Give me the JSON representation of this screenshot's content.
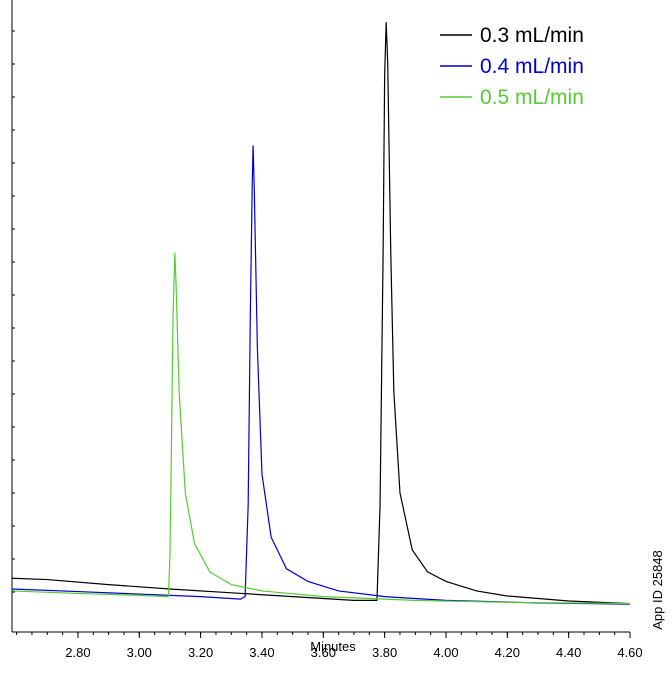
{
  "chart_data": {
    "type": "line",
    "xlabel": "Minutes",
    "annotation": "App ID 25848",
    "xlim": [
      2.585,
      4.6
    ],
    "ylim": [
      0,
      100
    ],
    "xticks": [
      {
        "value": 2.8,
        "label": "2.80"
      },
      {
        "value": 3.0,
        "label": "3.00"
      },
      {
        "value": 3.2,
        "label": "3.20"
      },
      {
        "value": 3.4,
        "label": "3.40"
      },
      {
        "value": 3.6,
        "label": "3.60"
      },
      {
        "value": 3.8,
        "label": "3.80"
      },
      {
        "value": 4.0,
        "label": "4.00"
      },
      {
        "value": 4.2,
        "label": "4.20"
      },
      {
        "value": 4.4,
        "label": "4.40"
      },
      {
        "value": 4.6,
        "label": "4.60"
      }
    ],
    "legend": "top-right",
    "series": [
      {
        "name": "0.3 mL/min",
        "color": "#000000",
        "x": [
          2.585,
          2.7,
          2.9,
          3.1,
          3.3,
          3.5,
          3.7,
          3.775,
          3.785,
          3.795,
          3.8,
          3.805,
          3.81,
          3.82,
          3.83,
          3.85,
          3.89,
          3.94,
          4.0,
          4.1,
          4.2,
          4.4,
          4.6
        ],
        "values": [
          8.5,
          8.3,
          7.5,
          6.8,
          6.2,
          5.6,
          5.0,
          5.0,
          20,
          60,
          88,
          96.5,
          90,
          60,
          38,
          22,
          13,
          9.5,
          8,
          6.5,
          5.7,
          4.9,
          4.5
        ]
      },
      {
        "name": "0.4 mL/min",
        "color": "#0000cc",
        "x": [
          2.585,
          2.8,
          3.0,
          3.2,
          3.33,
          3.345,
          3.355,
          3.362,
          3.368,
          3.371,
          3.375,
          3.385,
          3.4,
          3.43,
          3.48,
          3.55,
          3.65,
          3.8,
          4.0,
          4.3,
          4.6
        ],
        "values": [
          6.8,
          6.4,
          6.0,
          5.6,
          5.2,
          5.6,
          20,
          50,
          70,
          77,
          70,
          45,
          25,
          15,
          10,
          8,
          6.5,
          5.6,
          5.0,
          4.6,
          4.4
        ]
      },
      {
        "name": "0.5 mL/min",
        "color": "#55cc33",
        "x": [
          2.585,
          2.8,
          3.0,
          3.095,
          3.1,
          3.105,
          3.11,
          3.116,
          3.12,
          3.13,
          3.15,
          3.18,
          3.23,
          3.3,
          3.4,
          3.6,
          3.9,
          4.2,
          4.6
        ],
        "values": [
          6.5,
          6.1,
          5.8,
          5.6,
          12,
          30,
          50,
          60,
          55,
          38,
          22,
          14,
          9.5,
          7.5,
          6.5,
          5.6,
          5.0,
          4.7,
          4.5
        ]
      }
    ]
  }
}
